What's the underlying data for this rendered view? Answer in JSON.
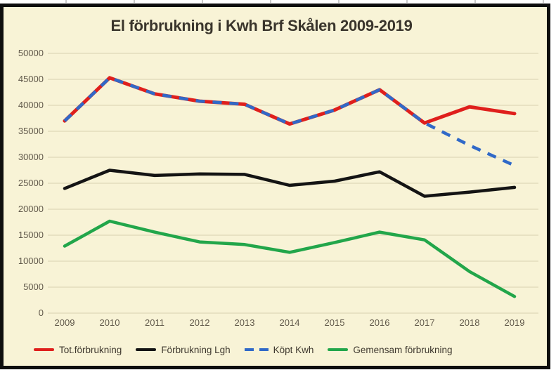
{
  "chart_data": {
    "type": "line",
    "title": "El förbrukning i Kwh Brf Skålen 2009-2019",
    "categories": [
      "2009",
      "2010",
      "2011",
      "2012",
      "2013",
      "2014",
      "2015",
      "2016",
      "2017",
      "2018",
      "2019"
    ],
    "series": [
      {
        "name": "Tot.förbrukning",
        "color": "#df1f1c",
        "style": "solid",
        "values": [
          37000,
          45300,
          42200,
          40800,
          40200,
          36400,
          39100,
          43000,
          36600,
          39700,
          38400
        ]
      },
      {
        "name": "Förbrukning Lgh",
        "color": "#141414",
        "style": "solid",
        "values": [
          24000,
          27500,
          26500,
          26800,
          26700,
          24600,
          25400,
          27200,
          22500,
          23300,
          24200
        ]
      },
      {
        "name": "Köpt Kwh",
        "color": "#3069c8",
        "style": "dashed",
        "values": [
          37000,
          45300,
          42200,
          40800,
          40200,
          36400,
          39100,
          43000,
          36600,
          32300,
          28400
        ]
      },
      {
        "name": "Gemensam förbrukning",
        "color": "#22a64a",
        "style": "solid",
        "values": [
          12900,
          17700,
          15600,
          13700,
          13200,
          11700,
          13600,
          15600,
          14100,
          8000,
          3200
        ]
      }
    ],
    "yticks": [
      "0",
      "5000",
      "10000",
      "15000",
      "20000",
      "25000",
      "30000",
      "35000",
      "40000",
      "45000",
      "50000"
    ],
    "ylim": [
      0,
      50000
    ],
    "ytick_step": 5000,
    "grid": "horizontal",
    "legend_position": "bottom",
    "colors": {
      "background": "#f8f3d6",
      "border": "#0e0e0e",
      "gridline": "#ddd7b8",
      "axis_text": "#60584a",
      "title_text": "#3a352c"
    }
  }
}
